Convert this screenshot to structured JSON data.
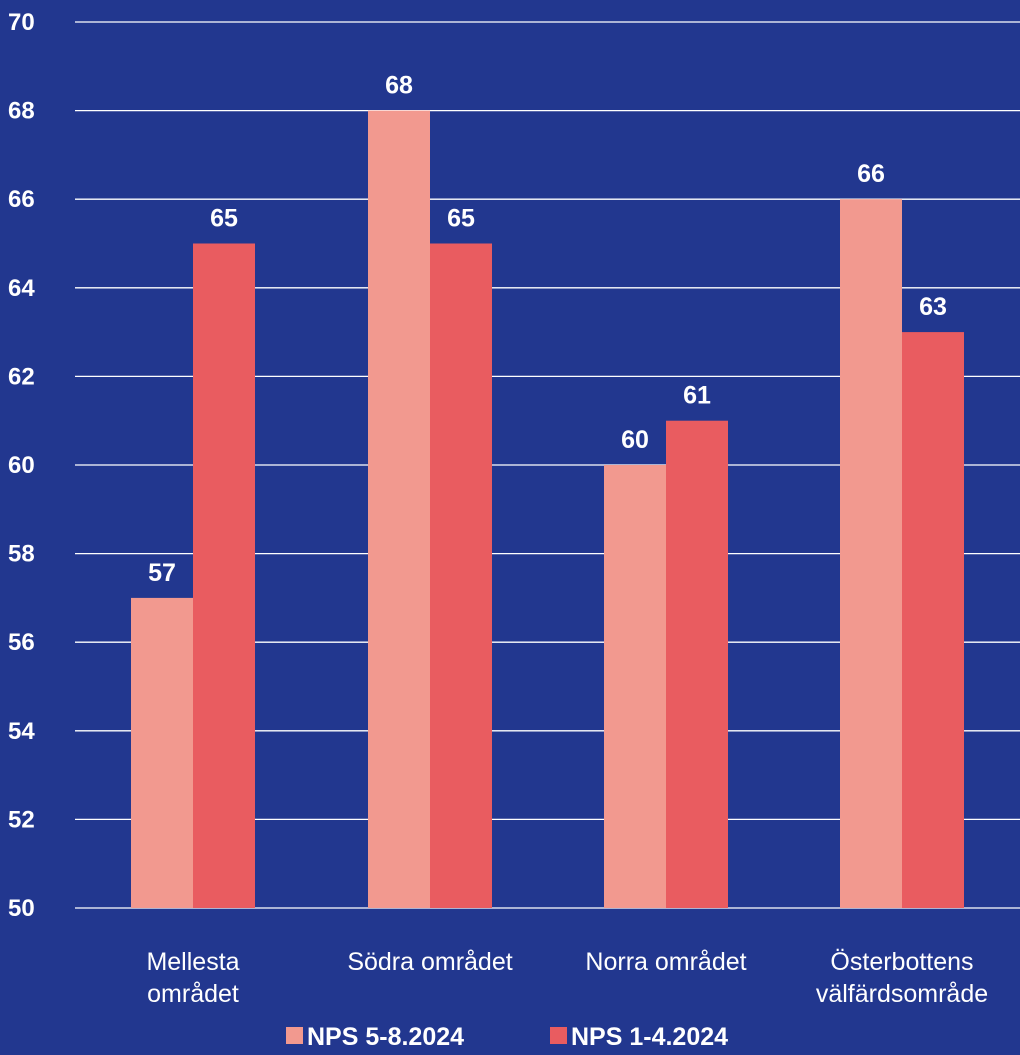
{
  "colors": {
    "background": "#22378f",
    "gridline": "#ffffff",
    "text": "#ffffff"
  },
  "chart_data": {
    "type": "bar",
    "categories": [
      [
        "Mellesta",
        "området"
      ],
      [
        "Södra området"
      ],
      [
        "Norra området"
      ],
      [
        "Österbottens",
        "välfärdsområde"
      ]
    ],
    "series": [
      {
        "name": "NPS 5-8.2024",
        "values": [
          57,
          68,
          60,
          66
        ],
        "color": "#f2998f"
      },
      {
        "name": "NPS 1-4.2024",
        "values": [
          65,
          65,
          61,
          63
        ],
        "color": "#e95c60"
      }
    ],
    "ylim": [
      50,
      70
    ],
    "yticks": [
      50,
      52,
      54,
      56,
      58,
      60,
      62,
      64,
      66,
      68,
      70
    ],
    "grid": true,
    "data_labels": true,
    "legend_position": "bottom",
    "title": "",
    "xlabel": "",
    "ylabel": ""
  }
}
